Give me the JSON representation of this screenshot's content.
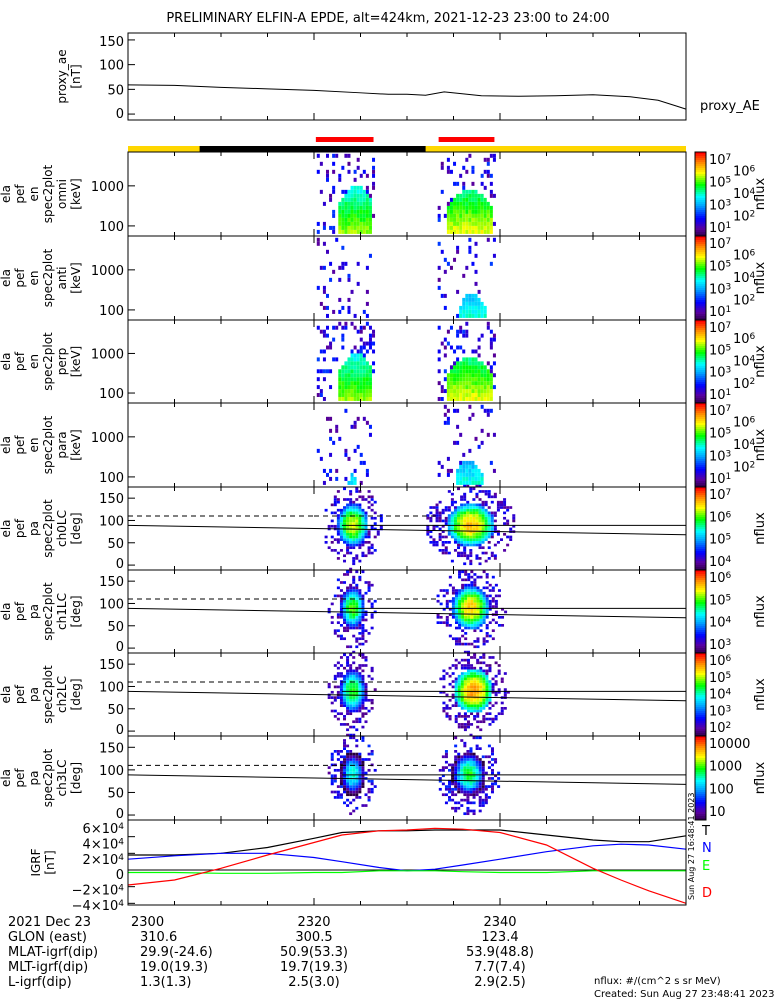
{
  "title": "PRELIMINARY ELFIN-A EPDE, alt=424km, 2021-12-23 23:00 to 24:00",
  "proxy_ae_legend": "proxy_AE",
  "colorbar_unit": "nflux",
  "time_axis": {
    "tick_labels": [
      "2300",
      "2320",
      "2340"
    ],
    "tick_minutes": [
      0,
      20,
      40
    ]
  },
  "bottom_info": {
    "rows": [
      {
        "label": "2021 Dec 23",
        "values": [
          "2300",
          "2320",
          "2340"
        ]
      },
      {
        "label": "GLON (east)",
        "values": [
          "310.6",
          "300.5",
          "123.4"
        ]
      },
      {
        "label": "MLAT-igrf(dip)",
        "values": [
          "29.9(-24.6)",
          "50.9(53.3)",
          "53.9(48.8)"
        ]
      },
      {
        "label": "MLT-igrf(dip)",
        "values": [
          "19.0(19.3)",
          "19.7(19.3)",
          "7.7(7.4)"
        ]
      },
      {
        "label": "L-igrf(dip)",
        "values": [
          "1.3(1.3)",
          "2.5(3.0)",
          "2.9(2.5)"
        ]
      }
    ],
    "units_note": "nflux: #/(cm^2 s sr MeV)",
    "created": "Created: Sun Aug 27 23:48:41 2023",
    "side_stamp": "Sun Aug 27 16:48:41 2023"
  },
  "igrf_legend": [
    {
      "label": "T",
      "color": "#000000"
    },
    {
      "label": "N",
      "color": "#0000ff"
    },
    {
      "label": "E",
      "color": "#00ff00"
    },
    {
      "label": "D",
      "color": "#ff0000"
    }
  ],
  "status_bar": {
    "colors": {
      "sunlit": "#ffd700",
      "shadow": "#000000",
      "science": "#ff0000"
    },
    "shadow_minutes": [
      7.7,
      32
    ],
    "science_zones_minutes": [
      [
        20.2,
        26.4
      ],
      [
        33.4,
        39.4
      ]
    ]
  },
  "chart_data": [
    {
      "type": "line",
      "id": "proxy_ae",
      "ylabel": [
        "proxy_ae",
        "[nT]"
      ],
      "yticks": [
        0,
        50,
        100,
        150
      ],
      "ylim": [
        -12,
        164
      ],
      "x_minutes": [
        0,
        5,
        10,
        15,
        20,
        25,
        28,
        30,
        32,
        34,
        38,
        42,
        46,
        50,
        54,
        57,
        59,
        60
      ],
      "values": [
        59,
        58,
        54,
        51,
        48,
        43,
        40,
        40,
        38,
        45,
        37,
        36,
        37,
        39,
        35,
        28,
        16,
        10
      ]
    },
    {
      "type": "heatmap",
      "id": "omni",
      "ylabel": [
        "ela",
        "pef",
        "en",
        "spec2plot",
        "omni",
        "[keV]"
      ],
      "yscale": "log",
      "yticks": [
        100,
        1000
      ],
      "ylim": [
        56,
        7000
      ],
      "clim_log10": [
        1,
        7
      ],
      "cbar_labels": [
        {
          "v": 7,
          "t": "10",
          "e": "7"
        },
        {
          "v": 6,
          "t": "10",
          "e": "6"
        },
        {
          "v": 5,
          "t": "10",
          "e": "5"
        },
        {
          "v": 4,
          "t": "10",
          "e": "4"
        },
        {
          "v": 3,
          "t": "10",
          "e": "3"
        },
        {
          "v": 2,
          "t": "10",
          "e": "2"
        },
        {
          "v": 1,
          "t": "10",
          "e": "1"
        }
      ],
      "blobs": [
        {
          "t_start": 20.3,
          "t_end": 26.3,
          "core_start": 22.6,
          "core_end": 26.2,
          "peak_log_flux": 5.0,
          "core_emax_keV": 900
        },
        {
          "t_start": 33.3,
          "t_end": 39.3,
          "core_start": 34.0,
          "core_end": 39.2,
          "peak_log_flux": 5.3,
          "core_emax_keV": 700
        }
      ]
    },
    {
      "type": "heatmap",
      "id": "anti",
      "ylabel": [
        "ela",
        "pef",
        "en",
        "spec2plot",
        "anti",
        "[keV]"
      ],
      "yscale": "log",
      "yticks": [
        100,
        1000
      ],
      "ylim": [
        56,
        7000
      ],
      "clim_log10": [
        1,
        7
      ],
      "cbar_labels": [
        {
          "v": 7,
          "t": "10",
          "e": "7"
        },
        {
          "v": 6,
          "t": "10",
          "e": "6"
        },
        {
          "v": 5,
          "t": "10",
          "e": "5"
        },
        {
          "v": 4,
          "t": "10",
          "e": "4"
        },
        {
          "v": 3,
          "t": "10",
          "e": "3"
        },
        {
          "v": 2,
          "t": "10",
          "e": "2"
        },
        {
          "v": 1,
          "t": "10",
          "e": "1"
        }
      ],
      "blobs": [
        {
          "t_start": 20.3,
          "t_end": 26.3,
          "core_start": 0,
          "core_end": 0,
          "peak_log_flux": 3.0,
          "core_emax_keV": 0
        },
        {
          "t_start": 33.3,
          "t_end": 39.3,
          "core_start": 35.5,
          "core_end": 38.3,
          "peak_log_flux": 3.8,
          "core_emax_keV": 250
        }
      ]
    },
    {
      "type": "heatmap",
      "id": "perp",
      "ylabel": [
        "ela",
        "pef",
        "en",
        "spec2plot",
        "perp",
        "[keV]"
      ],
      "yscale": "log",
      "yticks": [
        100,
        1000
      ],
      "ylim": [
        56,
        7000
      ],
      "clim_log10": [
        1,
        7
      ],
      "cbar_labels": [
        {
          "v": 7,
          "t": "10",
          "e": "7"
        },
        {
          "v": 6,
          "t": "10",
          "e": "6"
        },
        {
          "v": 5,
          "t": "10",
          "e": "5"
        },
        {
          "v": 4,
          "t": "10",
          "e": "4"
        },
        {
          "v": 3,
          "t": "10",
          "e": "3"
        },
        {
          "v": 2,
          "t": "10",
          "e": "2"
        },
        {
          "v": 1,
          "t": "10",
          "e": "1"
        }
      ],
      "blobs": [
        {
          "t_start": 20.3,
          "t_end": 26.3,
          "core_start": 22.6,
          "core_end": 26.2,
          "peak_log_flux": 5.0,
          "core_emax_keV": 900
        },
        {
          "t_start": 33.3,
          "t_end": 39.3,
          "core_start": 34.0,
          "core_end": 39.2,
          "peak_log_flux": 5.3,
          "core_emax_keV": 700
        }
      ]
    },
    {
      "type": "heatmap",
      "id": "para",
      "ylabel": [
        "ela",
        "pef",
        "en",
        "spec2plot",
        "para",
        "[keV]"
      ],
      "yscale": "log",
      "yticks": [
        100,
        1000
      ],
      "ylim": [
        56,
        7000
      ],
      "clim_log10": [
        1,
        7
      ],
      "cbar_labels": [
        {
          "v": 7,
          "t": "10",
          "e": "7"
        },
        {
          "v": 6,
          "t": "10",
          "e": "6"
        },
        {
          "v": 5,
          "t": "10",
          "e": "5"
        },
        {
          "v": 4,
          "t": "10",
          "e": "4"
        },
        {
          "v": 3,
          "t": "10",
          "e": "3"
        },
        {
          "v": 2,
          "t": "10",
          "e": "2"
        },
        {
          "v": 1,
          "t": "10",
          "e": "1"
        }
      ],
      "blobs": [
        {
          "t_start": 20.3,
          "t_end": 26.3,
          "core_start": 23.5,
          "core_end": 24.5,
          "peak_log_flux": 3.5,
          "core_emax_keV": 110
        },
        {
          "t_start": 33.3,
          "t_end": 39.3,
          "core_start": 35.0,
          "core_end": 38.0,
          "peak_log_flux": 3.8,
          "core_emax_keV": 250
        }
      ]
    },
    {
      "type": "heatmap",
      "id": "ch0LC",
      "ylabel": [
        "ela",
        "pef",
        "pa",
        "spec2plot",
        "ch0LC",
        "[deg]"
      ],
      "yscale": "linear",
      "yticks": [
        0,
        50,
        100,
        150
      ],
      "ylim": [
        -11,
        175
      ],
      "clim_log10": [
        3.2,
        7.1
      ],
      "cbar_labels": [
        {
          "v": 7,
          "t": "10",
          "e": "7"
        },
        {
          "v": 6,
          "t": "10",
          "e": "6"
        },
        {
          "v": 5,
          "t": "10",
          "e": "5"
        },
        {
          "v": 4,
          "t": "10",
          "e": "4"
        }
      ],
      "loss_cone_deg": {
        "start": 89,
        "end": 68
      },
      "anti_loss_cone_deg": 110,
      "blobs": [
        {
          "t_center": 24.0,
          "t_halfwidth": 1.6,
          "peak_log_flux": 6.0
        },
        {
          "t_center": 36.7,
          "t_halfwidth": 2.4,
          "peak_log_flux": 6.3
        }
      ]
    },
    {
      "type": "heatmap",
      "id": "ch1LC",
      "ylabel": [
        "ela",
        "pef",
        "pa",
        "spec2plot",
        "ch1LC",
        "[deg]"
      ],
      "yscale": "linear",
      "yticks": [
        0,
        50,
        100,
        150
      ],
      "ylim": [
        -11,
        175
      ],
      "clim_log10": [
        2.9,
        6.6
      ],
      "cbar_labels": [
        {
          "v": 6,
          "t": "10",
          "e": "6"
        },
        {
          "v": 5,
          "t": "10",
          "e": "5"
        },
        {
          "v": 4,
          "t": "10",
          "e": "4"
        },
        {
          "v": 3,
          "t": "10",
          "e": "3"
        }
      ],
      "loss_cone_deg": {
        "start": 89,
        "end": 68
      },
      "anti_loss_cone_deg": 110,
      "blobs": [
        {
          "t_center": 24.0,
          "t_halfwidth": 1.3,
          "peak_log_flux": 5.2
        },
        {
          "t_center": 36.7,
          "t_halfwidth": 1.9,
          "peak_log_flux": 5.8
        }
      ]
    },
    {
      "type": "heatmap",
      "id": "ch2LC",
      "ylabel": [
        "ela",
        "pef",
        "pa",
        "spec2plot",
        "ch2LC",
        "[deg]"
      ],
      "yscale": "linear",
      "yticks": [
        0,
        50,
        100,
        150
      ],
      "ylim": [
        -11,
        175
      ],
      "clim_log10": [
        1.9,
        6.2
      ],
      "cbar_labels": [
        {
          "v": 6,
          "t": "10",
          "e": "6"
        },
        {
          "v": 5,
          "t": "10",
          "e": "5"
        },
        {
          "v": 4,
          "t": "10",
          "e": "4"
        },
        {
          "v": 3,
          "t": "10",
          "e": "3"
        },
        {
          "v": 2,
          "t": "10",
          "e": "2"
        }
      ],
      "loss_cone_deg": {
        "start": 89,
        "end": 68
      },
      "anti_loss_cone_deg": 110,
      "blobs": [
        {
          "t_center": 24.0,
          "t_halfwidth": 1.3,
          "peak_log_flux": 4.5
        },
        {
          "t_center": 37.0,
          "t_halfwidth": 1.9,
          "peak_log_flux": 5.5
        }
      ]
    },
    {
      "type": "heatmap",
      "id": "ch3LC",
      "ylabel": [
        "ela",
        "pef",
        "pa",
        "spec2plot",
        "ch3LC",
        "[deg]"
      ],
      "yscale": "linear",
      "yticks": [
        0,
        50,
        100,
        150
      ],
      "ylim": [
        -11,
        175
      ],
      "clim_log10": [
        1,
        4.3
      ],
      "cbar_labels": [
        {
          "v": 4,
          "t": "10000",
          "e": ""
        },
        {
          "v": 3,
          "t": "1000",
          "e": ""
        },
        {
          "v": 2,
          "t": "100",
          "e": ""
        },
        {
          "v": 1,
          "t": "10",
          "e": ""
        }
      ],
      "loss_cone_deg": {
        "start": 89,
        "end": 68
      },
      "anti_loss_cone_deg": 110,
      "blobs": [
        {
          "t_center": 24.0,
          "t_halfwidth": 1.3,
          "peak_log_flux": 2.6
        },
        {
          "t_center": 36.5,
          "t_halfwidth": 1.7,
          "peak_log_flux": 2.9
        }
      ]
    },
    {
      "type": "line",
      "id": "igrf",
      "ylabel": [
        "IGRF",
        "[nT]"
      ],
      "ytick_labels": [
        {
          "v": 60000,
          "t": "6×10",
          "e": "4"
        },
        {
          "v": 40000,
          "t": "4×10",
          "e": "4"
        },
        {
          "v": 20000,
          "t": "2×10",
          "e": "4"
        },
        {
          "v": 0,
          "t": "0",
          "e": ""
        },
        {
          "v": -20000,
          "t": "−2×10",
          "e": "4"
        },
        {
          "v": -40000,
          "t": "−4×10",
          "e": "4"
        }
      ],
      "ylim": [
        -42000,
        60000
      ],
      "x_minutes": [
        0,
        5,
        10,
        15,
        20,
        23,
        27,
        30,
        33,
        36,
        40,
        45,
        50,
        53,
        56,
        60
      ],
      "series": [
        {
          "name": "T",
          "color": "#000000",
          "values": [
            18000,
            18000,
            20000,
            27000,
            38000,
            45000,
            47000,
            47000,
            48000,
            48000,
            48000,
            42000,
            36000,
            34000,
            34000,
            41000
          ]
        },
        {
          "name": "N",
          "color": "#0000ff",
          "values": [
            13000,
            17000,
            20000,
            20000,
            15000,
            10000,
            3000,
            -1000,
            1000,
            6000,
            13000,
            22000,
            29000,
            31000,
            30000,
            25000
          ]
        },
        {
          "name": "E",
          "color": "#00ff00",
          "values": [
            -3000,
            -3000,
            -4000,
            -4000,
            -3000,
            -3000,
            -1000,
            -1000,
            -1000,
            -2000,
            -3000,
            -3000,
            -1000,
            -1000,
            -1000,
            -1000
          ]
        },
        {
          "name": "D",
          "color": "#ff0000",
          "values": [
            -18000,
            -12000,
            2000,
            18000,
            33000,
            42000,
            47000,
            48000,
            50000,
            49000,
            45000,
            30000,
            2000,
            -12000,
            -25000,
            -40000
          ]
        }
      ]
    }
  ]
}
